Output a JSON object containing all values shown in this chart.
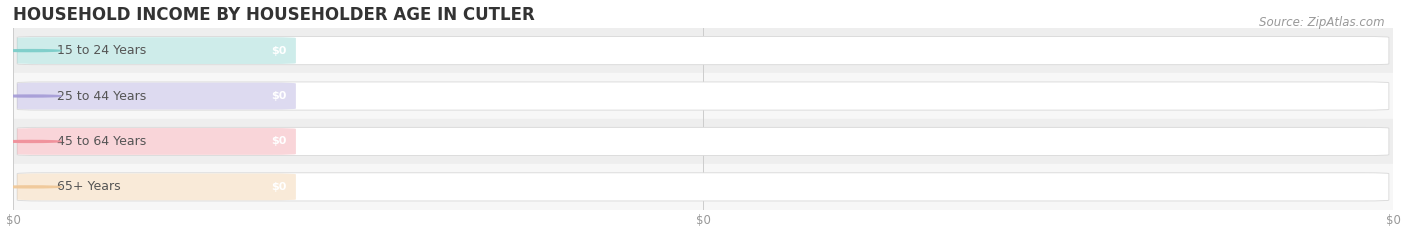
{
  "title": "HOUSEHOLD INCOME BY HOUSEHOLDER AGE IN CUTLER",
  "source": "Source: ZipAtlas.com",
  "categories": [
    "15 to 24 Years",
    "25 to 44 Years",
    "45 to 64 Years",
    "65+ Years"
  ],
  "values": [
    0,
    0,
    0,
    0
  ],
  "bar_colors": [
    "#7ececa",
    "#a89fd8",
    "#f0919b",
    "#f0c99a"
  ],
  "xlim": [
    0,
    1
  ],
  "title_fontsize": 12,
  "source_fontsize": 8.5,
  "bar_label_fontsize": 8,
  "category_fontsize": 9,
  "tick_fontsize": 8.5,
  "background_color": "#ffffff",
  "bar_height": 0.62,
  "row_bg_colors": [
    "#eeeeee",
    "#f7f7f7",
    "#eeeeee",
    "#f7f7f7"
  ]
}
